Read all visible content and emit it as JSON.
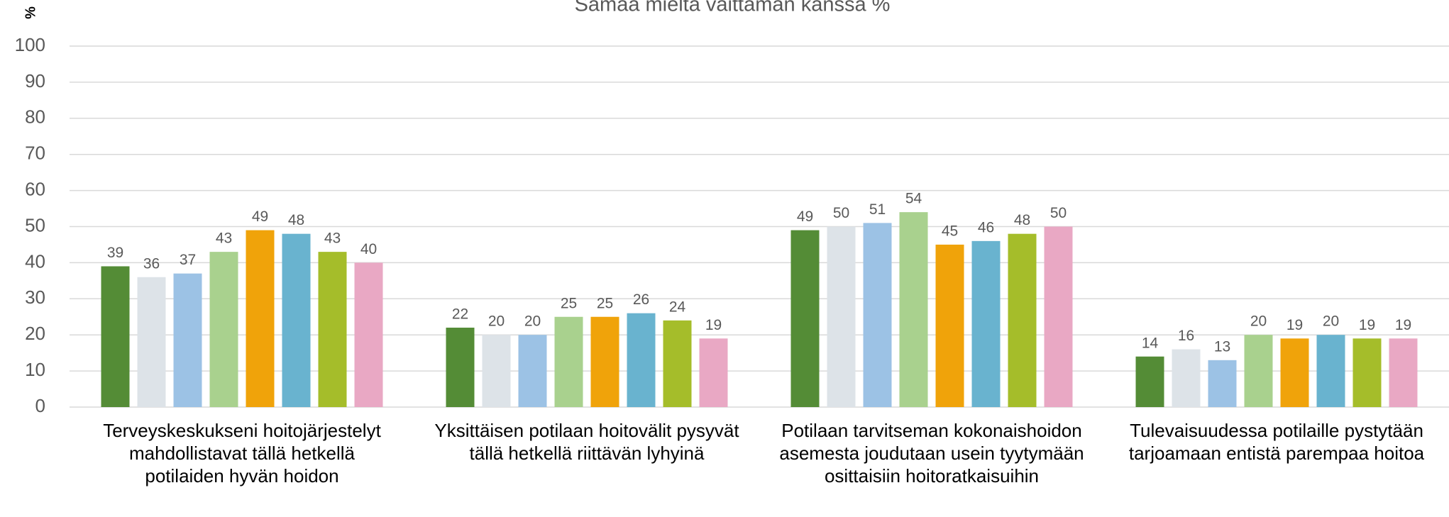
{
  "chart_data": {
    "type": "bar",
    "title": "Samaa mieltä väittämän kanssa %",
    "y_label": "%",
    "categories": [
      "Terveyskeskukseni hoitojärjestelyt mahdollistavat tällä hetkellä potilaiden hyvän hoidon",
      "Yksittäisen potilaan hoitovälit pysyvät tällä hetkellä riittävän lyhyinä",
      "Potilaan tarvitseman kokonaishoidon asemesta joudutaan usein tyytymään osittaisiin hoitoratkaisuihin",
      "Tulevaisuudessa potilaille pystytään tarjoamaan entistä parempaa hoitoa"
    ],
    "series": [
      {
        "color": "#548c36",
        "values": [
          39,
          22,
          49,
          14
        ]
      },
      {
        "color": "#dde3e8",
        "values": [
          36,
          20,
          50,
          16
        ]
      },
      {
        "color": "#9cc2e5",
        "values": [
          37,
          20,
          51,
          13
        ]
      },
      {
        "color": "#a9d18e",
        "values": [
          43,
          25,
          54,
          20
        ]
      },
      {
        "color": "#f0a30a",
        "values": [
          49,
          25,
          45,
          19
        ]
      },
      {
        "color": "#69b3cf",
        "values": [
          48,
          26,
          46,
          20
        ]
      },
      {
        "color": "#a5bd2a",
        "values": [
          43,
          24,
          48,
          19
        ]
      },
      {
        "color": "#e9a8c4",
        "values": [
          40,
          19,
          50,
          19
        ]
      }
    ],
    "ylim": [
      0,
      100
    ],
    "yticks": [
      0,
      10,
      20,
      30,
      40,
      50,
      60,
      70,
      80,
      90,
      100
    ],
    "grid": true
  }
}
